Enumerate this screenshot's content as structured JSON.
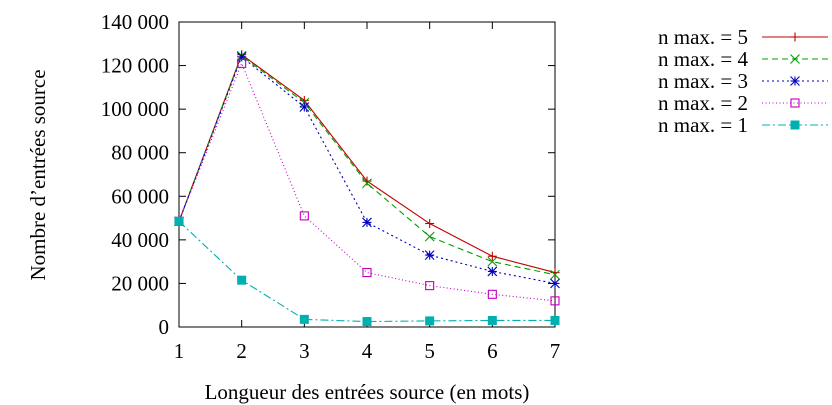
{
  "chart_data": {
    "type": "line",
    "title": "",
    "xlabel": "Longueur des entrées source (en mots)",
    "ylabel": "Nombre d’entrées source",
    "x": [
      1,
      2,
      3,
      4,
      5,
      6,
      7
    ],
    "xlim": [
      1,
      7
    ],
    "ylim": [
      0,
      140000
    ],
    "x_ticks": [
      "1",
      "2",
      "3",
      "4",
      "5",
      "6",
      "7"
    ],
    "y_ticks": [
      "0",
      "20 000",
      "40 000",
      "60 000",
      "80 000",
      "100 000",
      "120 000",
      "140 000"
    ],
    "grid": false,
    "legend_position": "top-right, outside plot",
    "series": [
      {
        "name": "n max. = 5",
        "values": [
          48500,
          125000,
          104000,
          67000,
          47500,
          32500,
          25000
        ],
        "color": "#c00000",
        "marker": "plus",
        "dash": "solid"
      },
      {
        "name": "n max. = 4",
        "values": [
          48500,
          124500,
          103000,
          66000,
          41500,
          30000,
          24000
        ],
        "color": "#00a000",
        "marker": "x",
        "dash": "dashed"
      },
      {
        "name": "n max. = 3",
        "values": [
          48500,
          124000,
          101000,
          48000,
          33000,
          25500,
          20000
        ],
        "color": "#0000c0",
        "marker": "star",
        "dash": "dotted"
      },
      {
        "name": "n max. = 2",
        "values": [
          48500,
          121000,
          51000,
          25000,
          19000,
          15000,
          12000
        ],
        "color": "#c000c0",
        "marker": "open-square",
        "dash": "fine-dotted"
      },
      {
        "name": "n max. = 1",
        "values": [
          48500,
          21500,
          3500,
          2500,
          2800,
          3000,
          3000
        ],
        "color": "#00b0b0",
        "marker": "filled-square",
        "dash": "dash-dot"
      }
    ]
  }
}
